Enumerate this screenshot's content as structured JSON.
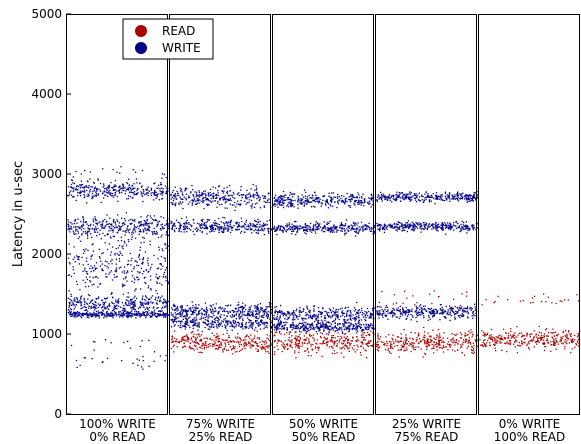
{
  "chart_data": {
    "type": "scatter",
    "ylabel": "Latency in u-sec",
    "xlabel": "",
    "ylim": [
      0,
      5000
    ],
    "yticks": [
      0,
      1000,
      2000,
      3000,
      4000,
      5000
    ],
    "legend_position": "top-left",
    "grid": false,
    "panels": [
      {
        "label_line1": "100% WRITE",
        "label_line2": "0% READ"
      },
      {
        "label_line1": "75% WRITE",
        "label_line2": "25% READ"
      },
      {
        "label_line1": "50% WRITE",
        "label_line2": "50% READ"
      },
      {
        "label_line1": "25% WRITE",
        "label_line2": "75% READ"
      },
      {
        "label_line1": "0% WRITE",
        "label_line2": "100% READ"
      }
    ],
    "series": [
      {
        "name": "READ",
        "color": "#aa0000",
        "bands_by_panel": [
          [],
          [
            {
              "center": 900,
              "spread": 220
            }
          ],
          [
            {
              "center": 910,
              "spread": 260
            }
          ],
          [
            {
              "center": 900,
              "spread": 240
            }
          ],
          [
            {
              "center": 940,
              "spread": 200
            }
          ]
        ]
      },
      {
        "name": "WRITE",
        "color": "#00008b",
        "bands_by_panel": [
          [
            {
              "center": 2800,
              "spread": 180
            },
            {
              "center": 2350,
              "spread": 220
            },
            {
              "center": 1850,
              "spread": 700
            },
            {
              "center": 1380,
              "spread": 180
            },
            {
              "center": 1250,
              "spread": 60
            }
          ],
          [
            {
              "center": 2720,
              "spread": 220
            },
            {
              "center": 2350,
              "spread": 150
            },
            {
              "center": 1300,
              "spread": 150
            },
            {
              "center": 1150,
              "spread": 160
            }
          ],
          [
            {
              "center": 2680,
              "spread": 150
            },
            {
              "center": 2330,
              "spread": 120
            },
            {
              "center": 1250,
              "spread": 180
            },
            {
              "center": 1100,
              "spread": 120
            }
          ],
          [
            {
              "center": 2720,
              "spread": 100
            },
            {
              "center": 2350,
              "spread": 100
            },
            {
              "center": 1280,
              "spread": 150
            }
          ],
          []
        ]
      }
    ]
  }
}
